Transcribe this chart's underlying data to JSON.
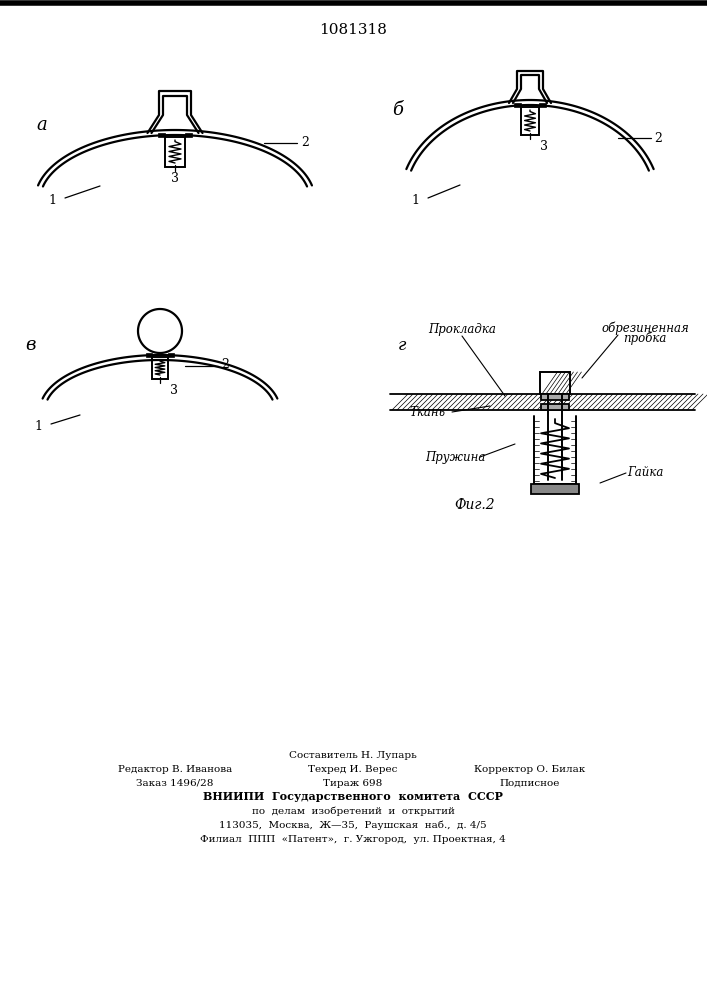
{
  "title": "1081318",
  "bg_color": "#ffffff",
  "label_a": "a",
  "label_b": "б",
  "label_v": "в",
  "label_g": "г",
  "fig_caption": "Фиг.2",
  "label1": "1",
  "label2": "2",
  "label3": "3",
  "ann_prokladka": "Прокладка",
  "ann_obrezinenaya": "обрезиненная",
  "ann_probka": "пробка",
  "ann_tkan": "Ткань",
  "ann_pruzhina": "Пружина",
  "ann_gaika": "Гайка",
  "footer_sestavitel": "Составитель Н. Лупарь",
  "footer_redaktor": "Редактор В. Иванова",
  "footer_tehred": "Техред И. Верес",
  "footer_korrektor": "Корректор О. Билак",
  "footer_zakaz": "Заказ 1496/28",
  "footer_tirazh": "Тираж 698",
  "footer_podpisnoe": "Подписное",
  "footer_vniipи": "ВНИИПИ  Государственного  комитета  СССР",
  "footer_po_delam": "по  делам  изобретений  и  открытий",
  "footer_addr": "113035,  Москва,  Ж—35,  Раушская  наб.,  д. 4/5",
  "footer_filial": "Филиал  ППП  «Патент»,  г. Ужгород,  ул. Проектная, 4"
}
